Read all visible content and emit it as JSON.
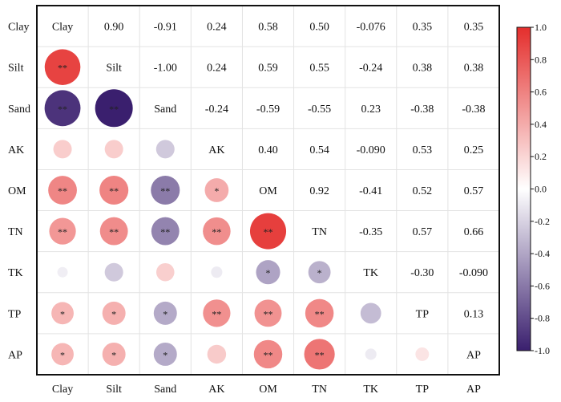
{
  "chart_data": {
    "type": "heatmap",
    "variables": [
      "Clay",
      "Silt",
      "Sand",
      "AK",
      "OM",
      "TN",
      "TK",
      "TP",
      "AP"
    ],
    "matrix": [
      [
        1,
        0.9,
        -0.91,
        0.24,
        0.58,
        0.5,
        -0.076,
        0.35,
        0.35
      ],
      [
        0.9,
        1,
        -1.0,
        0.24,
        0.59,
        0.55,
        -0.24,
        0.38,
        0.38
      ],
      [
        -0.91,
        -1.0,
        1,
        -0.24,
        -0.59,
        -0.55,
        0.23,
        -0.38,
        -0.38
      ],
      [
        0.24,
        0.24,
        -0.24,
        1,
        0.4,
        0.54,
        -0.09,
        0.53,
        0.25
      ],
      [
        0.58,
        0.59,
        -0.59,
        0.4,
        1,
        0.92,
        -0.41,
        0.52,
        0.57
      ],
      [
        0.5,
        0.55,
        -0.55,
        0.54,
        0.92,
        1,
        -0.35,
        0.57,
        0.66
      ],
      [
        -0.076,
        -0.24,
        0.23,
        -0.09,
        -0.41,
        -0.35,
        1,
        -0.3,
        -0.09
      ],
      [
        0.35,
        0.38,
        -0.38,
        0.53,
        0.52,
        0.57,
        -0.3,
        1,
        0.13
      ],
      [
        0.35,
        0.38,
        -0.38,
        0.25,
        0.57,
        0.66,
        -0.09,
        0.13,
        1
      ]
    ],
    "labels_upper": [
      [
        "Clay",
        "0.90",
        "-0.91",
        "0.24",
        "0.58",
        "0.50",
        "-0.076",
        "0.35",
        "0.35"
      ],
      [
        "",
        "Silt",
        "-1.00",
        "0.24",
        "0.59",
        "0.55",
        "-0.24",
        "0.38",
        "0.38"
      ],
      [
        "",
        "",
        "Sand",
        "-0.24",
        "-0.59",
        "-0.55",
        "0.23",
        "-0.38",
        "-0.38"
      ],
      [
        "",
        "",
        "",
        "AK",
        "0.40",
        "0.54",
        "-0.090",
        "0.53",
        "0.25"
      ],
      [
        "",
        "",
        "",
        "",
        "OM",
        "0.92",
        "-0.41",
        "0.52",
        "0.57"
      ],
      [
        "",
        "",
        "",
        "",
        "",
        "TN",
        "-0.35",
        "0.57",
        "0.66"
      ],
      [
        "",
        "",
        "",
        "",
        "",
        "",
        "TK",
        "-0.30",
        "-0.090"
      ],
      [
        "",
        "",
        "",
        "",
        "",
        "",
        "",
        "TP",
        "0.13"
      ],
      [
        "",
        "",
        "",
        "",
        "",
        "",
        "",
        "",
        "AP"
      ]
    ],
    "significance_lower": [
      [],
      [
        "**"
      ],
      [
        "**",
        "**"
      ],
      [
        "",
        "",
        ""
      ],
      [
        "**",
        "**",
        "**",
        "*"
      ],
      [
        "**",
        "**",
        "**",
        "**",
        "**"
      ],
      [
        "",
        "",
        "",
        "",
        "*",
        "*"
      ],
      [
        "*",
        "*",
        "*",
        "**",
        "**",
        "**",
        ""
      ],
      [
        "*",
        "*",
        "*",
        "",
        "**",
        "**",
        "",
        ""
      ]
    ],
    "colorbar": {
      "range": [
        -1,
        1
      ],
      "ticks": [
        "-1.0",
        "-0.8",
        "-0.6",
        "-0.4",
        "-0.2",
        "0.0",
        "0.2",
        "0.4",
        "0.6",
        "0.8",
        "1.0"
      ]
    },
    "colors": {
      "positive": "#e42e2c",
      "zero": "#ffffff",
      "negative": "#3a1f6e"
    }
  }
}
